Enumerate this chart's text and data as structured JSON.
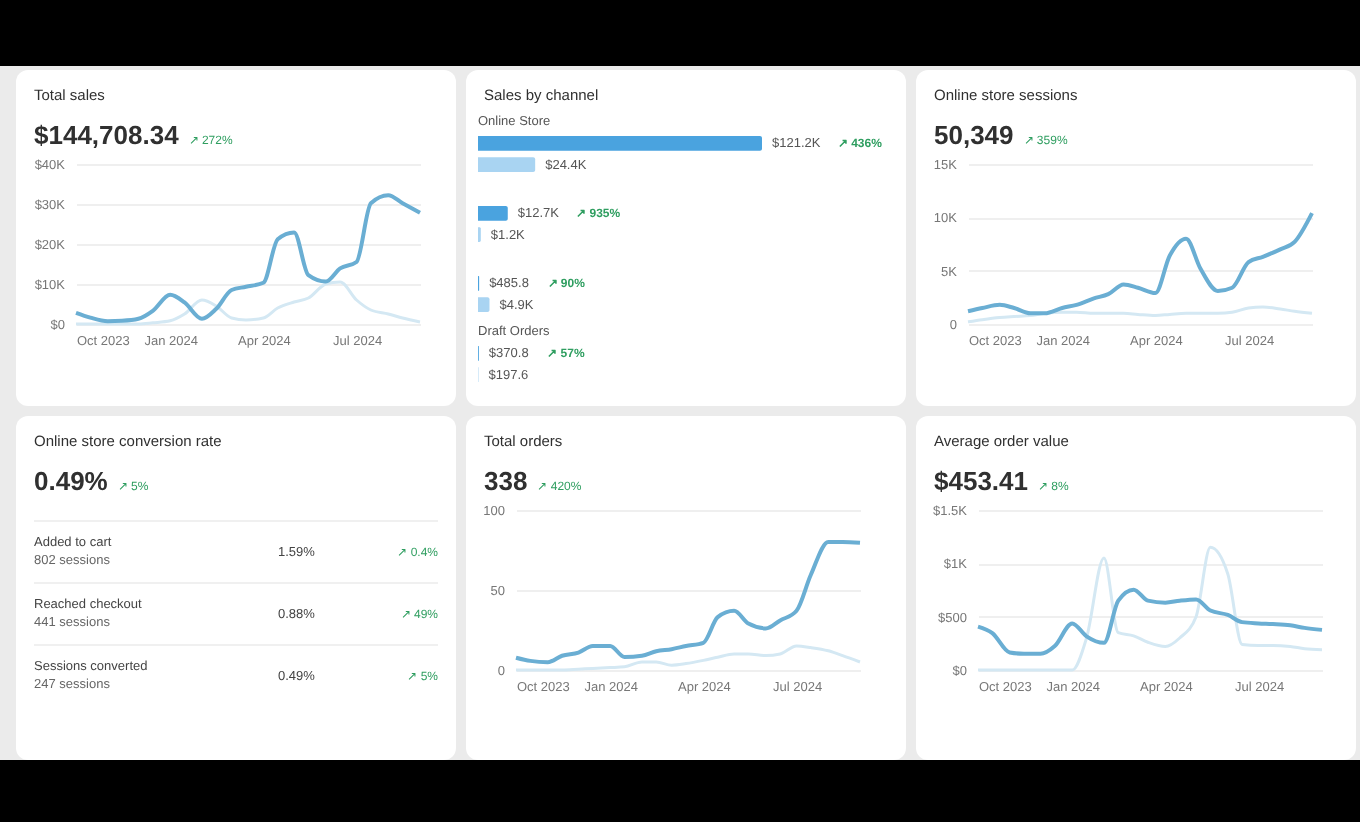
{
  "chart_data": [
    {
      "type": "line",
      "title": "Total sales",
      "subtitle": "$144,708.34",
      "annotations": [
        "↗ 272%"
      ],
      "x": [
        "2023-10-01",
        "2023-10-15",
        "2023-11-01",
        "2023-11-15",
        "2023-12-01",
        "2023-12-15",
        "2024-01-01",
        "2024-01-15",
        "2024-02-01",
        "2024-02-15",
        "2024-03-01",
        "2024-03-15",
        "2024-04-01",
        "2024-04-15",
        "2024-05-01",
        "2024-05-15",
        "2024-06-01",
        "2024-06-15",
        "2024-07-01",
        "2024-07-15",
        "2024-08-01",
        "2024-08-15",
        "2024-09-01"
      ],
      "series": [
        {
          "color": "#6aaed3",
          "values": [
            2.8,
            1.6,
            0.7,
            0.8,
            1.3,
            3.3,
            7.3,
            5.4,
            1.3,
            3.8,
            8.5,
            9.3,
            10.3,
            21.2,
            22.9,
            12.2,
            10.6,
            13.9,
            15.5,
            30.2,
            32.2,
            30.2,
            27.8
          ]
        },
        {
          "color": "#d4e8f3",
          "values": [
            0,
            0,
            0,
            0,
            0,
            0.3,
            0.8,
            2.5,
            6,
            4.5,
            1.5,
            1,
            1.5,
            4,
            5.5,
            6.5,
            10,
            10.5,
            6,
            3.5,
            2.5,
            1.5,
            0.5
          ]
        }
      ],
      "xlim": [
        "2023-10-01",
        "2024-09-01"
      ],
      "xticks": [
        {
          "value": "2023-10-01",
          "label": "Oct 2023"
        },
        {
          "value": "2024-01-01",
          "label": "Jan 2024"
        },
        {
          "value": "2024-04-01",
          "label": "Apr 2024"
        },
        {
          "value": "2024-07-01",
          "label": "Jul 2024"
        }
      ],
      "ylim": [
        0,
        40
      ],
      "yticks": [
        {
          "value": 0,
          "label": "$0"
        },
        {
          "value": 10,
          "label": "$10K"
        },
        {
          "value": 20,
          "label": "$20K"
        },
        {
          "value": 30,
          "label": "$30K"
        },
        {
          "value": 40,
          "label": "$40K"
        }
      ],
      "grid": "y"
    },
    {
      "type": "bar",
      "title": "Sales by channel",
      "orientation": "horizontal",
      "categories": [
        "Online Store",
        null,
        null,
        "Draft Orders"
      ],
      "annotations": [
        "↗ 436%",
        "↗ 935%",
        "↗ 90%",
        "↗ 57%"
      ],
      "series": [
        {
          "color": "#4aa3df",
          "values": [
            121200,
            12700,
            485.8,
            370.8
          ],
          "value_labels": [
            "$121.2K",
            "$12.7K",
            "$485.8",
            "$370.8"
          ]
        },
        {
          "color": "#a9d4f2",
          "values": [
            24400,
            1200,
            4900,
            197.6
          ],
          "value_labels": [
            "$24.4K",
            "$1.2K",
            "$4.9K",
            "$197.6"
          ]
        }
      ]
    },
    {
      "type": "line",
      "title": "Online store sessions",
      "subtitle": "50,349",
      "annotations": [
        "↗ 359%"
      ],
      "x": [
        "2023-10-01",
        "2023-10-15",
        "2023-11-01",
        "2023-11-15",
        "2023-12-01",
        "2023-12-15",
        "2024-01-01",
        "2024-01-15",
        "2024-02-01",
        "2024-02-15",
        "2024-03-01",
        "2024-03-15",
        "2024-04-01",
        "2024-04-15",
        "2024-05-01",
        "2024-05-15",
        "2024-06-01",
        "2024-06-15",
        "2024-07-01",
        "2024-07-15",
        "2024-08-01",
        "2024-08-15",
        "2024-09-01"
      ],
      "series": [
        {
          "color": "#6aaed3",
          "values": [
            1.2,
            1.5,
            1.8,
            1.5,
            1.0,
            1.0,
            1.5,
            1.8,
            2.4,
            2.8,
            3.7,
            3.4,
            2.9,
            6.4,
            8.0,
            5.2,
            3.1,
            3.4,
            5.8,
            6.3,
            7.0,
            7.7,
            10.4
          ]
        },
        {
          "color": "#d4e8f3",
          "values": [
            0.2,
            0.4,
            0.6,
            0.7,
            0.8,
            1.0,
            1.1,
            1.1,
            1.0,
            1.0,
            1.0,
            0.9,
            0.8,
            0.9,
            1.0,
            1.0,
            1.0,
            1.1,
            1.5,
            1.6,
            1.4,
            1.2,
            1.0
          ]
        }
      ],
      "xlim": [
        "2023-10-01",
        "2024-09-01"
      ],
      "xticks": [
        {
          "value": "2023-10-01",
          "label": "Oct 2023"
        },
        {
          "value": "2024-01-01",
          "label": "Jan 2024"
        },
        {
          "value": "2024-04-01",
          "label": "Apr 2024"
        },
        {
          "value": "2024-07-01",
          "label": "Jul 2024"
        }
      ],
      "ylim": [
        0,
        15
      ],
      "yticks": [
        {
          "value": 0,
          "label": "0"
        },
        {
          "value": 5,
          "label": "5K"
        },
        {
          "value": 10,
          "label": "10K"
        },
        {
          "value": 15,
          "label": "15K"
        }
      ],
      "grid": "y"
    },
    {
      "type": "other",
      "title": "Online store conversion rate",
      "subtitle": "0.49%",
      "annotations": [
        "↗ 5%",
        "Added to cart",
        "802 sessions",
        "1.59%",
        "↗ 0.4%",
        "Reached checkout",
        "441 sessions",
        "0.88%",
        "↗ 49%",
        "Sessions converted",
        "247 sessions",
        "0.49%",
        "↗ 5%"
      ]
    },
    {
      "type": "line",
      "title": "Total orders",
      "subtitle": "338",
      "annotations": [
        "↗ 420%"
      ],
      "x": [
        "2023-10-01",
        "2023-10-15",
        "2023-11-01",
        "2023-11-15",
        "2023-12-01",
        "2023-12-15",
        "2024-01-01",
        "2024-01-15",
        "2024-02-01",
        "2024-02-15",
        "2024-03-01",
        "2024-03-15",
        "2024-04-01",
        "2024-04-15",
        "2024-05-01",
        "2024-05-15",
        "2024-06-01",
        "2024-06-15",
        "2024-07-01",
        "2024-07-15",
        "2024-08-01",
        "2024-08-15",
        "2024-09-01"
      ],
      "series": [
        {
          "color": "#6aaed3",
          "values": [
            7.7,
            5.7,
            4.9,
            8.9,
            10.9,
            15,
            15,
            8.1,
            8.9,
            11.7,
            13,
            15,
            17,
            33,
            37,
            29,
            26,
            31,
            37,
            59.5,
            80,
            80,
            79.5
          ]
        },
        {
          "color": "#d4e8f3",
          "values": [
            0,
            0,
            0,
            0,
            0.5,
            1,
            1.5,
            2,
            5,
            5,
            3,
            4,
            6,
            8,
            10,
            10,
            9,
            10,
            15,
            14,
            12,
            9,
            5
          ]
        }
      ],
      "xlim": [
        "2023-10-01",
        "2024-09-01"
      ],
      "xticks": [
        {
          "value": "2023-10-01",
          "label": "Oct 2023"
        },
        {
          "value": "2024-01-01",
          "label": "Jan 2024"
        },
        {
          "value": "2024-04-01",
          "label": "Apr 2024"
        },
        {
          "value": "2024-07-01",
          "label": "Jul 2024"
        }
      ],
      "ylim": [
        0,
        100
      ],
      "yticks": [
        0,
        50,
        100
      ],
      "grid": "y"
    },
    {
      "type": "line",
      "title": "Average order value",
      "subtitle": "$453.41",
      "annotations": [
        "↗ 8%"
      ],
      "x": [
        "2023-10-01",
        "2023-10-15",
        "2023-11-01",
        "2023-11-15",
        "2023-12-01",
        "2023-12-15",
        "2024-01-01",
        "2024-01-15",
        "2024-02-01",
        "2024-02-15",
        "2024-03-01",
        "2024-03-15",
        "2024-04-01",
        "2024-04-15",
        "2024-05-01",
        "2024-05-15",
        "2024-06-01",
        "2024-06-15",
        "2024-07-01",
        "2024-07-15",
        "2024-08-01",
        "2024-08-15",
        "2024-09-01"
      ],
      "series": [
        {
          "color": "#6aaed3",
          "values": [
            407,
            346,
            164,
            152,
            152,
            225,
            437,
            316,
            255,
            650,
            753,
            650,
            631,
            650,
            662,
            558,
            516,
            449,
            437,
            431,
            419,
            395,
            376
          ]
        },
        {
          "color": "#d4e8f3",
          "values": [
            0,
            0,
            0,
            0,
            0,
            0,
            0,
            300,
            1050,
            350,
            320,
            260,
            220,
            300,
            500,
            1150,
            900,
            240,
            230,
            230,
            220,
            200,
            190
          ]
        }
      ],
      "xlim": [
        "2023-10-01",
        "2024-09-01"
      ],
      "xticks": [
        {
          "value": "2023-10-01",
          "label": "Oct 2023"
        },
        {
          "value": "2024-01-01",
          "label": "Jan 2024"
        },
        {
          "value": "2024-04-01",
          "label": "Apr 2024"
        },
        {
          "value": "2024-07-01",
          "label": "Jul 2024"
        }
      ],
      "ylim": [
        0,
        1500
      ],
      "yticks": [
        {
          "value": 0,
          "label": "$0"
        },
        {
          "value": 500,
          "label": "$500"
        },
        {
          "value": 1000,
          "label": "$1K"
        },
        {
          "value": 1500,
          "label": "$1.5K"
        }
      ],
      "grid": "y"
    }
  ]
}
